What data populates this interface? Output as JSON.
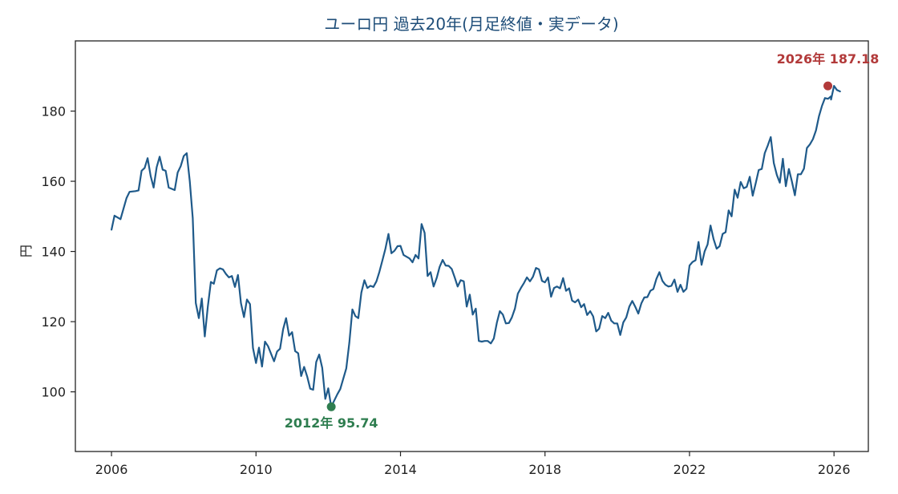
{
  "chart_data": {
    "type": "line",
    "title": "ユーロ円 過去20年(月足終値・実データ)",
    "xlabel": "",
    "ylabel": "円",
    "x_ticks": [
      "2006",
      "2010",
      "2014",
      "2018",
      "2022",
      "2026"
    ],
    "y_ticks": [
      "100",
      "120",
      "140",
      "160",
      "180"
    ],
    "xlim": [
      2005,
      2026.95
    ],
    "ylim": [
      83,
      200
    ],
    "grid": false,
    "line_color": "#1f5a8a",
    "series": [
      {
        "points": [
          [
            2006.0,
            146.2
          ],
          [
            2006.083,
            150.2
          ],
          [
            2006.25,
            149.2
          ],
          [
            2006.417,
            155.2
          ],
          [
            2006.5,
            157.0
          ],
          [
            2006.667,
            157.2
          ],
          [
            2006.75,
            157.4
          ],
          [
            2006.833,
            163.0
          ],
          [
            2006.917,
            163.8
          ],
          [
            2007.0,
            166.6
          ],
          [
            2007.083,
            161.5
          ],
          [
            2007.167,
            158.2
          ],
          [
            2007.25,
            164.0
          ],
          [
            2007.333,
            167.0
          ],
          [
            2007.417,
            163.3
          ],
          [
            2007.5,
            163.0
          ],
          [
            2007.583,
            158.2
          ],
          [
            2007.75,
            157.5
          ],
          [
            2007.833,
            162.5
          ],
          [
            2007.917,
            164.3
          ],
          [
            2008.0,
            167.2
          ],
          [
            2008.083,
            168.0
          ],
          [
            2008.167,
            160.0
          ],
          [
            2008.25,
            149.5
          ],
          [
            2008.333,
            125.3
          ],
          [
            2008.417,
            121.0
          ],
          [
            2008.5,
            126.6
          ],
          [
            2008.583,
            115.8
          ],
          [
            2008.667,
            124.3
          ],
          [
            2008.75,
            131.3
          ],
          [
            2008.833,
            130.8
          ],
          [
            2008.917,
            134.6
          ],
          [
            2009.0,
            135.2
          ],
          [
            2009.083,
            134.9
          ],
          [
            2009.167,
            133.6
          ],
          [
            2009.25,
            132.6
          ],
          [
            2009.333,
            133.0
          ],
          [
            2009.417,
            129.9
          ],
          [
            2009.5,
            133.3
          ],
          [
            2009.583,
            125.3
          ],
          [
            2009.667,
            121.3
          ],
          [
            2009.75,
            126.3
          ],
          [
            2009.833,
            125.0
          ],
          [
            2009.917,
            112.5
          ],
          [
            2010.0,
            108.2
          ],
          [
            2010.083,
            112.6
          ],
          [
            2010.167,
            107.2
          ],
          [
            2010.25,
            114.3
          ],
          [
            2010.333,
            113.0
          ],
          [
            2010.5,
            108.7
          ],
          [
            2010.583,
            111.5
          ],
          [
            2010.667,
            112.3
          ],
          [
            2010.75,
            117.8
          ],
          [
            2010.833,
            121.0
          ],
          [
            2010.917,
            116.0
          ],
          [
            2011.0,
            117.0
          ],
          [
            2011.083,
            111.6
          ],
          [
            2011.167,
            111.0
          ],
          [
            2011.25,
            104.5
          ],
          [
            2011.333,
            107.1
          ],
          [
            2011.417,
            104.4
          ],
          [
            2011.5,
            100.9
          ],
          [
            2011.583,
            100.6
          ],
          [
            2011.667,
            108.5
          ],
          [
            2011.75,
            110.6
          ],
          [
            2011.833,
            106.8
          ],
          [
            2011.917,
            98.0
          ],
          [
            2012.0,
            101.0
          ],
          [
            2012.083,
            95.74
          ],
          [
            2012.25,
            99.3
          ],
          [
            2012.333,
            100.8
          ],
          [
            2012.5,
            106.7
          ],
          [
            2012.583,
            114.0
          ],
          [
            2012.667,
            123.5
          ],
          [
            2012.75,
            121.6
          ],
          [
            2012.833,
            121.0
          ],
          [
            2012.917,
            128.3
          ],
          [
            2013.0,
            131.8
          ],
          [
            2013.083,
            129.6
          ],
          [
            2013.167,
            130.2
          ],
          [
            2013.25,
            129.9
          ],
          [
            2013.333,
            131.5
          ],
          [
            2013.417,
            134.2
          ],
          [
            2013.5,
            137.5
          ],
          [
            2013.583,
            140.8
          ],
          [
            2013.667,
            145.0
          ],
          [
            2013.75,
            139.5
          ],
          [
            2013.833,
            140.2
          ],
          [
            2013.917,
            141.5
          ],
          [
            2014.0,
            141.6
          ],
          [
            2014.083,
            139.0
          ],
          [
            2014.25,
            138.0
          ],
          [
            2014.333,
            136.9
          ],
          [
            2014.417,
            139.0
          ],
          [
            2014.5,
            138.0
          ],
          [
            2014.583,
            147.8
          ],
          [
            2014.667,
            145.3
          ],
          [
            2014.75,
            133.0
          ],
          [
            2014.833,
            134.1
          ],
          [
            2014.917,
            130.0
          ],
          [
            2015.0,
            132.4
          ],
          [
            2015.083,
            135.6
          ],
          [
            2015.167,
            137.6
          ],
          [
            2015.25,
            136.0
          ],
          [
            2015.333,
            135.9
          ],
          [
            2015.417,
            135.0
          ],
          [
            2015.5,
            132.6
          ],
          [
            2015.583,
            130.0
          ],
          [
            2015.667,
            131.8
          ],
          [
            2015.75,
            131.5
          ],
          [
            2015.833,
            124.3
          ],
          [
            2015.917,
            127.7
          ],
          [
            2016.0,
            122.0
          ],
          [
            2016.083,
            123.7
          ],
          [
            2016.167,
            114.5
          ],
          [
            2016.25,
            114.3
          ],
          [
            2016.333,
            114.5
          ],
          [
            2016.417,
            114.5
          ],
          [
            2016.5,
            113.8
          ],
          [
            2016.583,
            115.2
          ],
          [
            2016.667,
            119.7
          ],
          [
            2016.75,
            123.0
          ],
          [
            2016.833,
            122.0
          ],
          [
            2016.917,
            119.5
          ],
          [
            2017.0,
            119.6
          ],
          [
            2017.083,
            121.2
          ],
          [
            2017.167,
            123.7
          ],
          [
            2017.25,
            128.0
          ],
          [
            2017.333,
            129.6
          ],
          [
            2017.417,
            131.0
          ],
          [
            2017.5,
            132.6
          ],
          [
            2017.583,
            131.5
          ],
          [
            2017.667,
            132.8
          ],
          [
            2017.75,
            135.3
          ],
          [
            2017.833,
            134.9
          ],
          [
            2017.917,
            131.6
          ],
          [
            2018.0,
            131.2
          ],
          [
            2018.083,
            132.6
          ],
          [
            2018.167,
            127.1
          ],
          [
            2018.25,
            129.6
          ],
          [
            2018.333,
            130.0
          ],
          [
            2018.417,
            129.5
          ],
          [
            2018.5,
            132.4
          ],
          [
            2018.583,
            128.8
          ],
          [
            2018.667,
            129.5
          ],
          [
            2018.75,
            126.0
          ],
          [
            2018.833,
            125.5
          ],
          [
            2018.917,
            126.3
          ],
          [
            2019.0,
            124.1
          ],
          [
            2019.083,
            125.0
          ],
          [
            2019.167,
            121.9
          ],
          [
            2019.25,
            123.0
          ],
          [
            2019.333,
            121.5
          ],
          [
            2019.417,
            117.2
          ],
          [
            2019.5,
            118.0
          ],
          [
            2019.583,
            121.6
          ],
          [
            2019.667,
            121.0
          ],
          [
            2019.75,
            122.5
          ],
          [
            2019.833,
            120.3
          ],
          [
            2019.917,
            119.5
          ],
          [
            2020.0,
            119.5
          ],
          [
            2020.083,
            116.2
          ],
          [
            2020.167,
            119.8
          ],
          [
            2020.25,
            121.2
          ],
          [
            2020.333,
            124.3
          ],
          [
            2020.417,
            125.9
          ],
          [
            2020.5,
            124.2
          ],
          [
            2020.583,
            122.3
          ],
          [
            2020.667,
            125.2
          ],
          [
            2020.75,
            126.9
          ],
          [
            2020.833,
            127.0
          ],
          [
            2020.917,
            128.8
          ],
          [
            2021.0,
            129.3
          ],
          [
            2021.083,
            132.2
          ],
          [
            2021.167,
            134.1
          ],
          [
            2021.25,
            131.6
          ],
          [
            2021.333,
            130.5
          ],
          [
            2021.417,
            130.0
          ],
          [
            2021.5,
            130.2
          ],
          [
            2021.583,
            132.0
          ],
          [
            2021.667,
            128.5
          ],
          [
            2021.75,
            130.5
          ],
          [
            2021.833,
            128.5
          ],
          [
            2021.917,
            129.4
          ],
          [
            2022.0,
            136.0
          ],
          [
            2022.083,
            137.0
          ],
          [
            2022.167,
            137.5
          ],
          [
            2022.25,
            142.7
          ],
          [
            2022.333,
            136.2
          ],
          [
            2022.417,
            140.0
          ],
          [
            2022.5,
            142.0
          ],
          [
            2022.583,
            147.4
          ],
          [
            2022.667,
            143.5
          ],
          [
            2022.75,
            140.8
          ],
          [
            2022.833,
            141.5
          ],
          [
            2022.917,
            145.0
          ],
          [
            2023.0,
            145.5
          ],
          [
            2023.083,
            151.7
          ],
          [
            2023.167,
            150.0
          ],
          [
            2023.25,
            157.6
          ],
          [
            2023.333,
            155.3
          ],
          [
            2023.417,
            159.8
          ],
          [
            2023.5,
            158.0
          ],
          [
            2023.583,
            158.4
          ],
          [
            2023.667,
            161.3
          ],
          [
            2023.75,
            155.9
          ],
          [
            2023.833,
            159.5
          ],
          [
            2023.917,
            163.2
          ],
          [
            2024.0,
            163.5
          ],
          [
            2024.083,
            168.0
          ],
          [
            2024.167,
            170.2
          ],
          [
            2024.25,
            172.6
          ],
          [
            2024.333,
            165.2
          ],
          [
            2024.417,
            161.8
          ],
          [
            2024.5,
            159.6
          ],
          [
            2024.583,
            166.4
          ],
          [
            2024.667,
            158.6
          ],
          [
            2024.75,
            163.5
          ],
          [
            2024.833,
            160.0
          ],
          [
            2024.917,
            156.0
          ],
          [
            2025.0,
            162.0
          ],
          [
            2025.083,
            162.0
          ],
          [
            2025.167,
            163.6
          ],
          [
            2025.25,
            169.5
          ],
          [
            2025.333,
            170.5
          ],
          [
            2025.417,
            172.0
          ],
          [
            2025.5,
            174.5
          ],
          [
            2025.583,
            178.5
          ],
          [
            2025.667,
            181.5
          ],
          [
            2025.75,
            183.7
          ],
          [
            2025.833,
            183.5
          ],
          [
            2025.917,
            184.2
          ],
          [
            2025.917,
            183.3
          ],
          [
            2026.0,
            187.18
          ],
          [
            2026.083,
            186.0
          ],
          [
            2026.167,
            185.6
          ]
        ]
      }
    ],
    "annotations": [
      {
        "label": "2026年 187.18",
        "x": 2025.83,
        "y": 187.18,
        "color": "#b23a3a",
        "position": "above"
      },
      {
        "label": "2012年 95.74",
        "x": 2012.083,
        "y": 95.74,
        "color": "#2e7d4f",
        "position": "below"
      }
    ]
  }
}
